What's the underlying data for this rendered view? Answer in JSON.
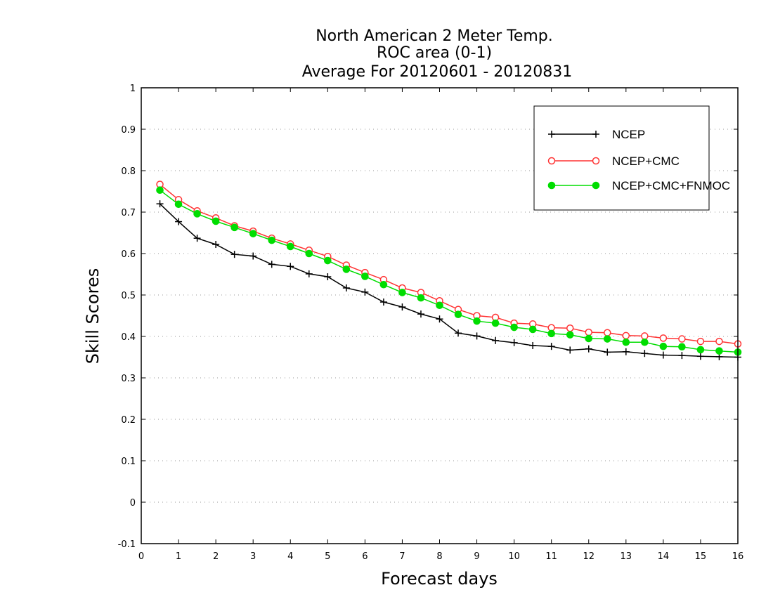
{
  "chart_data": {
    "type": "line",
    "title": [
      "North American 2 Meter Temp.",
      "ROC area (0-1)",
      "Average For 20120601 - 20120831"
    ],
    "xlabel": "Forecast days",
    "ylabel": "Skill Scores",
    "xlim": [
      0,
      16
    ],
    "ylim": [
      -0.1,
      1
    ],
    "x_ticks": [
      "0",
      "1",
      "2",
      "3",
      "4",
      "5",
      "6",
      "7",
      "8",
      "9",
      "10",
      "11",
      "12",
      "13",
      "14",
      "15",
      "16"
    ],
    "y_ticks": [
      "-0.1",
      "0",
      "0.1",
      "0.2",
      "0.3",
      "0.4",
      "0.5",
      "0.6",
      "0.7",
      "0.8",
      "0.9",
      "1"
    ],
    "grid": "horizontal-dotted",
    "legend_position": "top-right",
    "x": [
      0.5,
      1,
      1.5,
      2,
      2.5,
      3,
      3.5,
      4,
      4.5,
      5,
      5.5,
      6,
      6.5,
      7,
      7.5,
      8,
      8.5,
      9,
      9.5,
      10,
      10.5,
      11,
      11.5,
      12,
      12.5,
      13,
      13.5,
      14,
      14.5,
      15,
      15.5,
      16
    ],
    "series": [
      {
        "name": "NCEP",
        "color": "#000000",
        "marker": "plus",
        "values": [
          0.72,
          0.677,
          0.637,
          0.622,
          0.598,
          0.594,
          0.574,
          0.569,
          0.551,
          0.544,
          0.517,
          0.507,
          0.483,
          0.471,
          0.454,
          0.442,
          0.408,
          0.401,
          0.39,
          0.385,
          0.378,
          0.376,
          0.367,
          0.37,
          0.362,
          0.363,
          0.359,
          0.355,
          0.354,
          0.352,
          0.351,
          0.35
        ]
      },
      {
        "name": "NCEP+CMC",
        "color": "#ff3333",
        "marker": "open-circle",
        "values": [
          0.767,
          0.73,
          0.703,
          0.686,
          0.667,
          0.654,
          0.637,
          0.623,
          0.608,
          0.593,
          0.572,
          0.554,
          0.537,
          0.517,
          0.506,
          0.486,
          0.465,
          0.45,
          0.446,
          0.432,
          0.43,
          0.421,
          0.42,
          0.41,
          0.409,
          0.402,
          0.401,
          0.396,
          0.394,
          0.388,
          0.388,
          0.382
        ]
      },
      {
        "name": "NCEP+CMC+FNMOC",
        "color": "#00dd00",
        "marker": "filled-circle",
        "values": [
          0.753,
          0.719,
          0.696,
          0.678,
          0.663,
          0.648,
          0.632,
          0.617,
          0.6,
          0.583,
          0.562,
          0.545,
          0.525,
          0.506,
          0.493,
          0.475,
          0.453,
          0.437,
          0.432,
          0.422,
          0.417,
          0.407,
          0.404,
          0.395,
          0.394,
          0.386,
          0.386,
          0.376,
          0.375,
          0.368,
          0.365,
          0.362
        ]
      }
    ]
  }
}
